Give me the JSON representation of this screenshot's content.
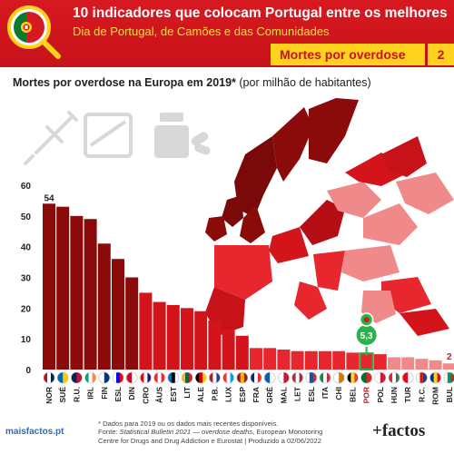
{
  "header": {
    "title": "10 indicadores que colocam Portugal entre os melhores",
    "subtitle": "Dia de Portugal, de Camões e das Comunidades",
    "topic": "Mortes por overdose",
    "topic_number": "2"
  },
  "chart_heading": {
    "bold": "Mortes por overdose na Europa em 2019*",
    "normal": " (por milhão de habitantes)"
  },
  "footnote": {
    "line1": "* Dados para 2019 ou os dados mais recentes disponíveis.",
    "line2_prefix": "Fonte: ",
    "line2_italic": "Statistical Bulletin 2021 — overdose deaths",
    "line2_rest": ", European Monotoring",
    "line3": "Centre for Drugs and Drug Addiction e Eurostat | Produzido a 02/06/2022"
  },
  "footer": {
    "left_logo": "maisfactos.pt",
    "right_logo": "+factos"
  },
  "icons": [
    "syringe-icon",
    "pill-box-icon",
    "medicine-bottle-icon",
    "portugal-flag-icon",
    "magnifier-icon",
    "map-pin-icon"
  ],
  "colors": {
    "brand_red": "#c8121a",
    "accent_yellow": "#ffd21f",
    "highlight_green": "#2bb24c",
    "bar_dark": "#8b0a0a",
    "bar_mid": "#d3151b",
    "bar_light": "#f08a8a"
  },
  "chart_data": {
    "type": "bar",
    "title": "Mortes por overdose na Europa em 2019*",
    "subtitle": "(por milhão de habitantes)",
    "categories": [
      "NOR",
      "SUÉ",
      "R.U.",
      "IRL",
      "FIN",
      "ESL",
      "DIN",
      "CRO",
      "ÁUS",
      "EST",
      "LIT",
      "ALE",
      "P.B.",
      "LUX",
      "ESP",
      "FRA",
      "GRÉ",
      "MAL",
      "LET",
      "ESL",
      "ITA",
      "CHI",
      "BEL",
      "POR",
      "POL",
      "HUN",
      "TUR",
      "R.C.",
      "ROM",
      "BUL"
    ],
    "values": [
      54,
      53,
      50,
      49,
      41,
      36,
      30,
      25,
      22,
      21,
      20,
      19,
      16,
      13,
      11,
      7,
      7,
      6.5,
      6,
      6,
      6,
      6,
      5.5,
      5.3,
      5,
      4,
      4,
      3.5,
      3,
      2
    ],
    "highlight_category": "POR",
    "data_labels": {
      "first": "54",
      "highlight": "5,3",
      "last": "2"
    },
    "yticks": [
      0,
      10,
      20,
      30,
      40,
      50,
      60
    ],
    "ylim": [
      0,
      60
    ],
    "grid": false,
    "xlabel": "",
    "ylabel": ""
  }
}
